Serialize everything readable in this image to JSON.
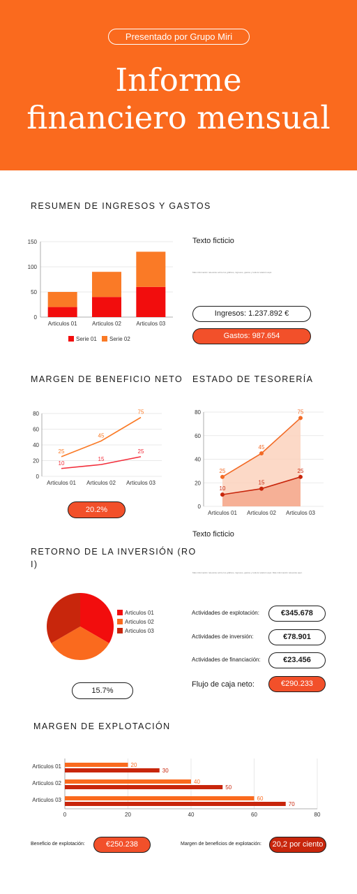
{
  "header": {
    "presenter": "Presentado por Grupo Miri",
    "title_line1": "Informe",
    "title_line2": "financiero mensual"
  },
  "colors": {
    "brand_orange": "#fa6a1e",
    "series_red": "#f20d0d",
    "series_orange": "#fa7a26",
    "dark_red": "#c8260c",
    "pill_red": "#f2502a"
  },
  "income_expense": {
    "section_title": "RESUMEN DE INGRESOS Y GASTOS",
    "side_title": "Texto ficticio",
    "side_body": "Más información relevante sobre los gráficos, ingresos, gastos y toda la relación aquí.",
    "income_label": "Ingresos: 1.237.892 €",
    "expense_label": "Gastos: 987.654"
  },
  "net_margin": {
    "section_title": "MARGEN DE BENEFICIO NETO",
    "value": "20.2%"
  },
  "treasury": {
    "section_title": "ESTADO DE TESORERÍA",
    "side_title": "Texto ficticio",
    "side_body": "Más información relevante sobre los gráficos, ingresos, gastos y toda la relación aquí. Más información relevante aquí.",
    "rows": [
      {
        "label": "Actividades de explotación:",
        "value": "€345.678"
      },
      {
        "label": "Actividades de inversión:",
        "value": "€78.901"
      },
      {
        "label": "Actividades de financiación:",
        "value": "€23.456"
      }
    ],
    "net_label": "Flujo de caja neto:",
    "net_value": "€290.233"
  },
  "roi": {
    "section_title_1": "RETORNO DE LA INVERSIÓN (RO",
    "section_title_2": "I)",
    "value": "15.7%"
  },
  "operating_margin": {
    "section_title": "MARGEN DE EXPLOTACIÓN",
    "benefit_label": "Beneficio de explotación:",
    "benefit_value": "€250.238",
    "margin_label": "Margen de beneficios de explotación:",
    "margin_value": "20,2 por ciento"
  },
  "chart_data": [
    {
      "id": "income_expense_bar",
      "type": "bar",
      "stacked": true,
      "categories": [
        "Articulos 01",
        "Articulos 02",
        "Articulos 03"
      ],
      "series": [
        {
          "name": "Serie 01",
          "values": [
            20,
            40,
            60
          ],
          "color": "#f20d0d"
        },
        {
          "name": "Serie 02",
          "values": [
            30,
            50,
            70
          ],
          "color": "#fa7a26"
        }
      ],
      "y_ticks": [
        "0",
        "50",
        "100",
        "150"
      ],
      "ylim": [
        0,
        150
      ],
      "legend_position": "bottom",
      "grid": true
    },
    {
      "id": "net_margin_line",
      "type": "line",
      "categories": [
        "Articulos 01",
        "Articulos 02",
        "Articulos 03"
      ],
      "series": [
        {
          "values": [
            25,
            45,
            75
          ],
          "color": "#fa7a26"
        },
        {
          "values": [
            10,
            15,
            25
          ],
          "color": "#f22d3a"
        }
      ],
      "y_ticks": [
        "0",
        "20",
        "40",
        "60",
        "80"
      ],
      "ylim": [
        0,
        80
      ],
      "grid": true
    },
    {
      "id": "treasury_area",
      "type": "area",
      "categories": [
        "Articulos 01",
        "Articulos 02",
        "Articulos 03"
      ],
      "series": [
        {
          "values": [
            25,
            45,
            75
          ],
          "color": "#f26a25"
        },
        {
          "values": [
            10,
            15,
            25
          ],
          "color": "#c8260c"
        }
      ],
      "y_ticks": [
        "0",
        "20",
        "40",
        "60",
        "80"
      ],
      "ylim": [
        0,
        80
      ],
      "grid": true
    },
    {
      "id": "roi_pie",
      "type": "pie",
      "categories": [
        "Articulos 01",
        "Articulos 02",
        "Articulos 03"
      ],
      "values": [
        33.3,
        33.3,
        33.3
      ],
      "colors": [
        "#f20d0d",
        "#fa6a1e",
        "#c8260c"
      ],
      "legend_position": "right"
    },
    {
      "id": "operating_hbar",
      "type": "bar",
      "orientation": "horizontal",
      "categories": [
        "Articulos 01",
        "Articulos 02",
        "Articulos 03"
      ],
      "series": [
        {
          "values": [
            20,
            40,
            60
          ],
          "color": "#fa6a1e"
        },
        {
          "values": [
            30,
            50,
            70
          ],
          "color": "#c8260c"
        }
      ],
      "x_ticks": [
        "0",
        "20",
        "40",
        "60",
        "80"
      ],
      "xlim": [
        0,
        80
      ],
      "grid": true
    }
  ]
}
